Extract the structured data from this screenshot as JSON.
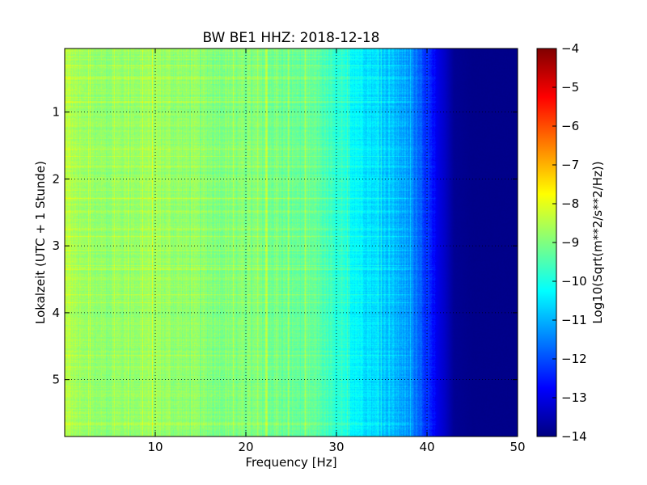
{
  "chart_data": {
    "type": "heatmap",
    "title": "BW BE1 HHZ: 2018-12-18",
    "xlabel": "Frequency [Hz]",
    "ylabel": "Lokalzeit (UTC + 1 Stunde)",
    "xlim": [
      0,
      50
    ],
    "ylim": [
      5.85,
      0.05
    ],
    "y_inverted": true,
    "xticks": [
      10,
      20,
      30,
      40,
      50
    ],
    "yticks": [
      1,
      2,
      3,
      4,
      5
    ],
    "grid": true,
    "colormap": "jet",
    "colorbar": {
      "label": "Log10(Sqrt(m**2/s**2/Hz))",
      "range": [
        -14,
        -4
      ],
      "ticks": [
        -4,
        -5,
        -6,
        -7,
        -8,
        -9,
        -10,
        -11,
        -12,
        -13,
        -14
      ]
    },
    "frequency_profile": {
      "x": [
        0,
        2,
        5,
        10,
        15,
        20,
        25,
        28,
        30,
        32,
        35,
        37,
        39,
        40,
        41,
        42,
        43,
        45,
        50
      ],
      "values": [
        -8.4,
        -8.8,
        -8.8,
        -8.7,
        -8.9,
        -9.0,
        -9.2,
        -9.3,
        -9.9,
        -10.2,
        -10.7,
        -11.0,
        -11.6,
        -12.3,
        -12.9,
        -13.3,
        -13.8,
        -13.9,
        -13.9
      ]
    }
  }
}
